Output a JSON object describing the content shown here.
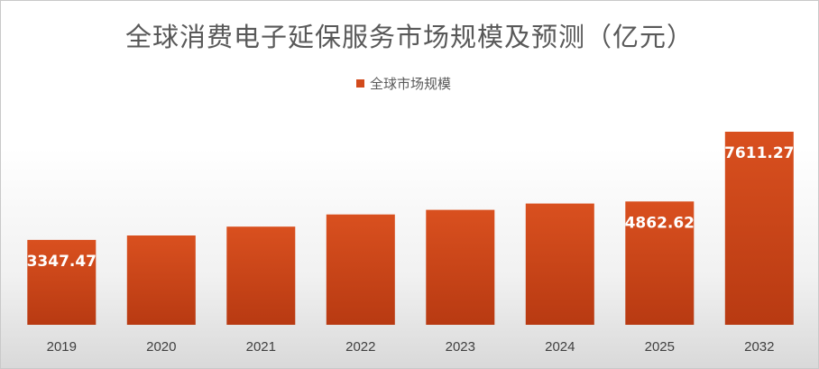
{
  "chart_data": {
    "type": "bar",
    "title": "全球消费电子延保服务市场规模及预测（亿元）",
    "legend": {
      "position": "top-center",
      "entries": [
        "全球市场规模"
      ]
    },
    "categories": [
      "2019",
      "2020",
      "2021",
      "2022",
      "2023",
      "2024",
      "2025",
      "2032"
    ],
    "series": [
      {
        "name": "全球市场规模",
        "color": "#d24a1c",
        "values": [
          3347.47,
          3520,
          3870,
          4350,
          4530,
          4780,
          4862.62,
          7611.27
        ],
        "data_labels": [
          "3347.47",
          "",
          "",
          "",
          "",
          "",
          "4862.62",
          "7611.27"
        ]
      }
    ],
    "ylim": [
      0,
      8000
    ],
    "grid": false,
    "y_axis_visible": false
  }
}
